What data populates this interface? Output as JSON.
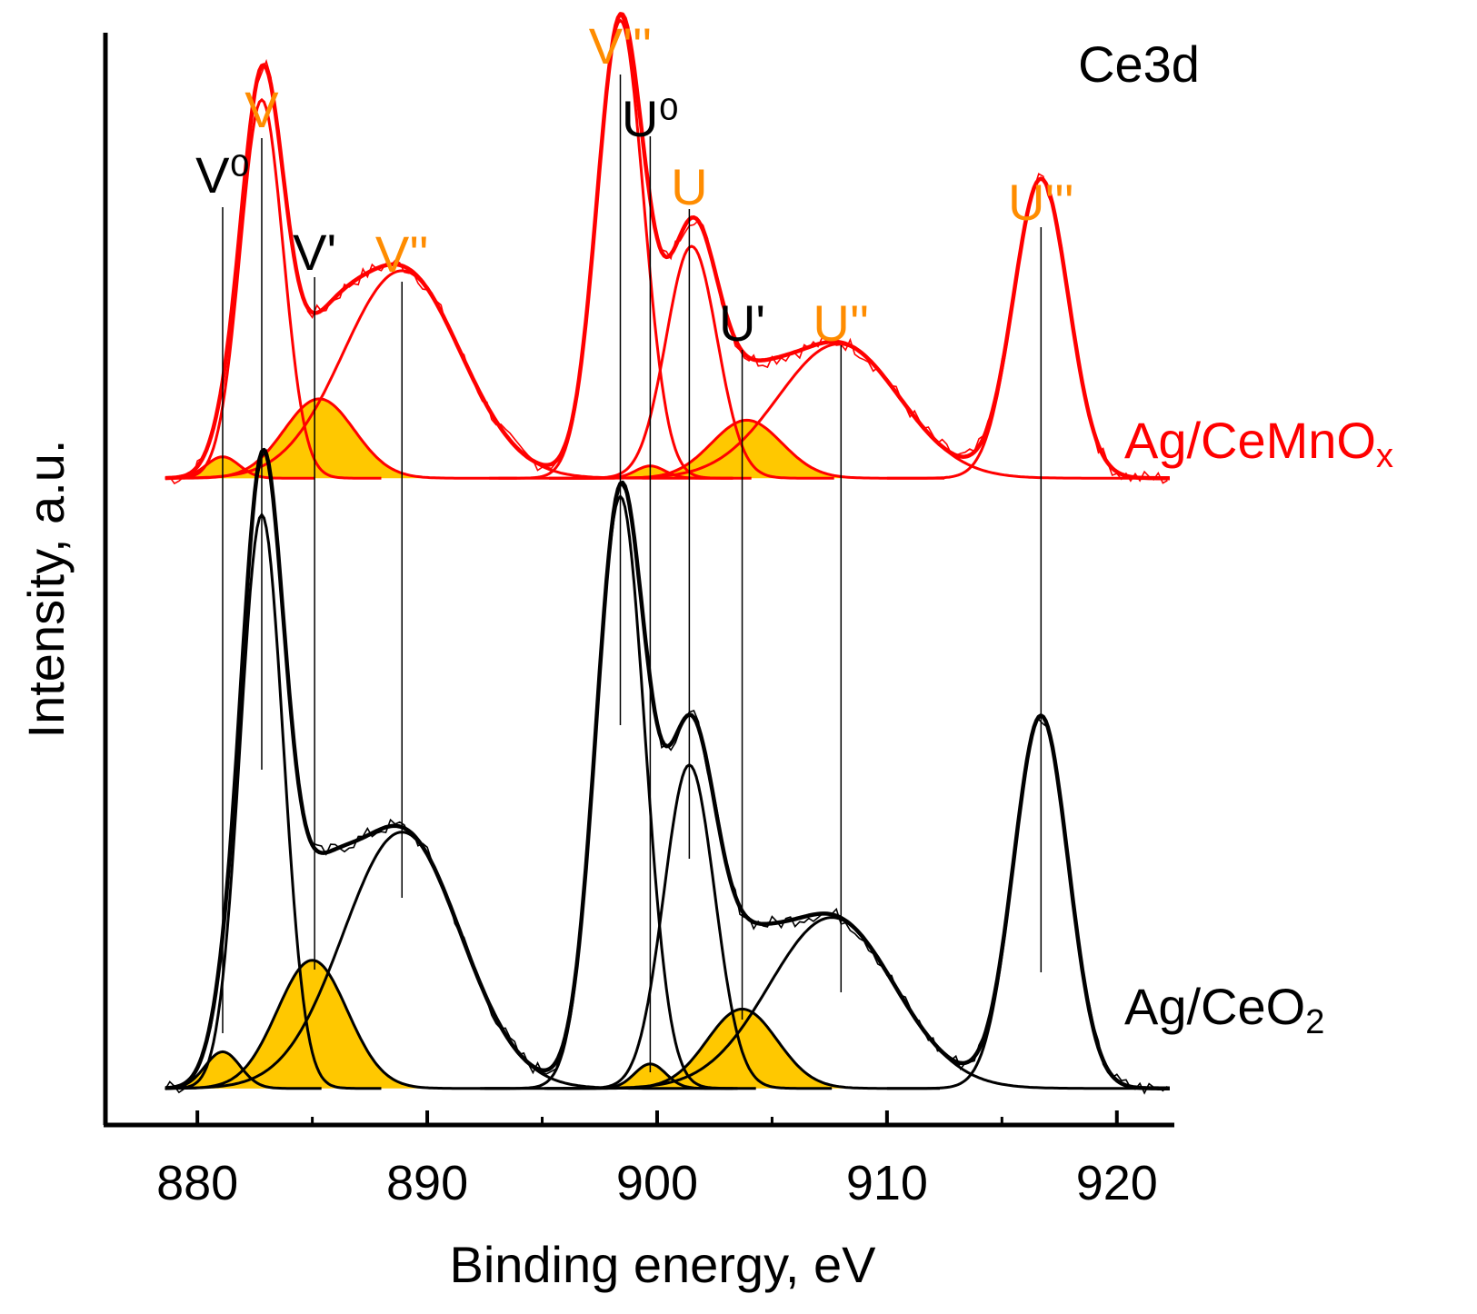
{
  "chart_data": {
    "type": "line",
    "title": "Ce3d",
    "xlabel": "Binding energy, eV",
    "ylabel": "Intensity, a.u.",
    "xlim": [
      876,
      922.5
    ],
    "ylim": [
      -0.06,
      1.73
    ],
    "x_ticks": [
      880,
      890,
      900,
      910,
      920
    ],
    "x_minor_ticks": [
      885,
      895,
      905,
      915
    ],
    "grid": false,
    "legend": "none",
    "colors": {
      "cemnox": "#ff0000",
      "ceo2": "#000000",
      "fill": "#ffc800",
      "label_ce3": "#000000",
      "label_ce4": "#ff8c00"
    },
    "peak_labels": [
      {
        "label": "V⁰",
        "x": 881.1,
        "ion": "ce3"
      },
      {
        "label": "V",
        "x": 882.8,
        "ion": "ce4"
      },
      {
        "label": "V'",
        "x": 885.1,
        "ion": "ce3"
      },
      {
        "label": "V''",
        "x": 888.9,
        "ion": "ce4"
      },
      {
        "label": "V'''",
        "x": 898.4,
        "ion": "ce4"
      },
      {
        "label": "U⁰",
        "x": 899.7,
        "ion": "ce3"
      },
      {
        "label": "U",
        "x": 901.4,
        "ion": "ce4"
      },
      {
        "label": "U'",
        "x": 903.7,
        "ion": "ce3"
      },
      {
        "label": "U''",
        "x": 908.0,
        "ion": "ce4"
      },
      {
        "label": "U'''",
        "x": 916.7,
        "ion": "ce4"
      }
    ],
    "series": [
      {
        "name": "Ag/CeMnOx",
        "label_main": "Ag/CeMnO",
        "label_sub": "x",
        "color": "#ff0000",
        "baseline": 1.0,
        "peaks": [
          {
            "center": 881.1,
            "height": 0.035,
            "fwhm": 1.7,
            "ce3": true
          },
          {
            "center": 882.8,
            "height": 0.62,
            "fwhm": 2.2
          },
          {
            "center": 885.3,
            "height": 0.13,
            "fwhm": 3.6,
            "ce3": true
          },
          {
            "center": 888.9,
            "height": 0.34,
            "fwhm": 6.0
          },
          {
            "center": 898.4,
            "height": 0.75,
            "fwhm": 2.4
          },
          {
            "center": 899.7,
            "height": 0.02,
            "fwhm": 1.5,
            "ce3": true
          },
          {
            "center": 901.5,
            "height": 0.38,
            "fwhm": 2.6
          },
          {
            "center": 903.9,
            "height": 0.095,
            "fwhm": 3.6,
            "ce3": true
          },
          {
            "center": 907.9,
            "height": 0.22,
            "fwhm": 6.2
          },
          {
            "center": 916.7,
            "height": 0.49,
            "fwhm": 2.8
          }
        ]
      },
      {
        "name": "Ag/CeO2",
        "label_main": "Ag/CeO",
        "label_sub": "2",
        "color": "#000000",
        "baseline": 0.0,
        "peaks": [
          {
            "center": 881.1,
            "height": 0.06,
            "fwhm": 1.8,
            "ce3": true
          },
          {
            "center": 882.8,
            "height": 0.94,
            "fwhm": 2.2
          },
          {
            "center": 885.0,
            "height": 0.21,
            "fwhm": 3.6,
            "ce3": true
          },
          {
            "center": 888.9,
            "height": 0.42,
            "fwhm": 6.0
          },
          {
            "center": 898.4,
            "height": 0.97,
            "fwhm": 2.5
          },
          {
            "center": 899.7,
            "height": 0.04,
            "fwhm": 1.6,
            "ce3": true
          },
          {
            "center": 901.4,
            "height": 0.53,
            "fwhm": 2.6
          },
          {
            "center": 903.7,
            "height": 0.13,
            "fwhm": 3.6,
            "ce3": true
          },
          {
            "center": 907.6,
            "height": 0.28,
            "fwhm": 6.4
          },
          {
            "center": 916.7,
            "height": 0.61,
            "fwhm": 2.8
          }
        ]
      }
    ]
  }
}
